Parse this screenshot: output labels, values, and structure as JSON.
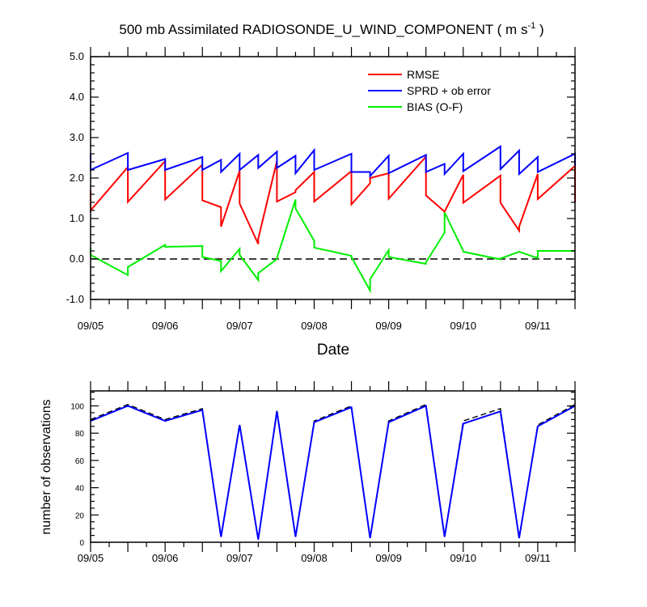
{
  "colors": {
    "rmse": "#ff0000",
    "spread": "#0000ff",
    "bias": "#00ee00",
    "obs_assim": "#0000ff",
    "obs_total": "#000000",
    "axis": "#000000"
  },
  "chart_data": [
    {
      "type": "line",
      "title_main": "500 mb Assimilated RADIOSONDE_U_WIND_COMPONENT ( m s",
      "title_sup": "-1",
      "title_end": " )",
      "xlabel": "Date",
      "ylabel": "",
      "xlim": [
        0,
        6.5
      ],
      "ylim": [
        -1.0,
        5.0
      ],
      "yticks": [
        -1.0,
        0.0,
        1.0,
        2.0,
        3.0,
        4.0,
        5.0
      ],
      "ytick_labels": [
        "-1.0",
        "0.0",
        "1.0",
        "2.0",
        "3.0",
        "4.0",
        "5.0"
      ],
      "xticks": [
        0,
        1,
        2,
        3,
        4,
        5,
        6
      ],
      "xtick_labels": [
        "09/05",
        "09/06",
        "09/07",
        "09/08",
        "09/09",
        "09/10",
        "09/11"
      ],
      "zero_line": "dashed",
      "legend_position": "top-right",
      "series": [
        {
          "name": "RMSE",
          "color_key": "rmse",
          "x": [
            0,
            0,
            0.5,
            0.5,
            1,
            1,
            1.5,
            1.5,
            1.75,
            1.75,
            2,
            2,
            2.25,
            2.25,
            2.5,
            2.5,
            2.75,
            2.75,
            3,
            3,
            3.5,
            3.5,
            3.75,
            3.75,
            4,
            4,
            4.5,
            4.5,
            4.75,
            4.75,
            5,
            5,
            5.5,
            5.5,
            5.75,
            5.75,
            6,
            6,
            6.5,
            6.5
          ],
          "y": [
            1.7,
            1.2,
            2.27,
            1.41,
            2.42,
            1.47,
            2.33,
            1.45,
            1.28,
            0.8,
            2.18,
            1.37,
            0.37,
            0.5,
            2.42,
            1.42,
            1.65,
            1.7,
            2.15,
            1.42,
            2.17,
            1.35,
            1.87,
            2.0,
            2.12,
            1.49,
            2.53,
            1.57,
            1.17,
            1.17,
            2.08,
            1.39,
            2.06,
            1.39,
            0.7,
            0.8,
            2.1,
            1.48,
            2.3,
            1.4
          ]
        },
        {
          "name": "SPRD + ob error",
          "color_key": "spread",
          "x": [
            0,
            0,
            0.5,
            0.5,
            1,
            1,
            1.5,
            1.5,
            1.75,
            1.75,
            2,
            2,
            2.25,
            2.25,
            2.5,
            2.5,
            2.75,
            2.75,
            3,
            3,
            3.5,
            3.5,
            3.75,
            3.75,
            4,
            4,
            4.5,
            4.5,
            4.75,
            4.75,
            5,
            5,
            5.5,
            5.5,
            5.75,
            5.75,
            6,
            6,
            6.5,
            6.5
          ],
          "y": [
            2.6,
            2.2,
            2.62,
            2.2,
            2.47,
            2.2,
            2.52,
            2.2,
            2.45,
            2.15,
            2.6,
            2.2,
            2.57,
            2.25,
            2.65,
            2.25,
            2.55,
            2.12,
            2.69,
            2.2,
            2.6,
            2.15,
            2.15,
            2.05,
            2.55,
            2.12,
            2.57,
            2.15,
            2.35,
            2.1,
            2.6,
            2.17,
            2.78,
            2.22,
            2.68,
            2.1,
            2.52,
            2.15,
            2.6,
            2.3
          ]
        },
        {
          "name": "BIAS (O-F)",
          "color_key": "bias",
          "x": [
            0,
            0,
            0.5,
            0.5,
            1,
            1,
            1.5,
            1.5,
            1.75,
            1.75,
            2,
            2,
            2.25,
            2.25,
            2.5,
            2.5,
            2.75,
            2.75,
            3,
            3,
            3.5,
            3.5,
            3.75,
            3.75,
            4,
            4,
            4.5,
            4.5,
            4.75,
            4.75,
            5,
            5,
            5.5,
            5.5,
            5.75,
            5.75,
            6,
            6,
            6.5,
            6.5
          ],
          "y": [
            0.28,
            0.1,
            -0.4,
            -0.2,
            0.35,
            0.3,
            0.32,
            0.05,
            -0.05,
            -0.3,
            0.25,
            0.1,
            -0.52,
            -0.35,
            0.0,
            0.02,
            1.47,
            1.25,
            0.45,
            0.28,
            0.08,
            0.05,
            -0.78,
            -0.5,
            0.22,
            0.05,
            -0.12,
            -0.08,
            0.65,
            1.15,
            0.2,
            0.18,
            -0.01,
            0.01,
            0.18,
            0.18,
            0.02,
            0.2,
            0.2,
            0.2
          ]
        }
      ]
    },
    {
      "type": "line",
      "title": "",
      "xlabel": "",
      "ylabel": "number of observations",
      "xlim": [
        0,
        6.5
      ],
      "ylim": [
        0,
        111
      ],
      "yticks": [
        0,
        20,
        40,
        60,
        80,
        100
      ],
      "ytick_labels": [
        "0",
        "20",
        "40",
        "60",
        "80",
        "100"
      ],
      "xticks": [
        0,
        1,
        2,
        3,
        4,
        5,
        6
      ],
      "xtick_labels": [
        "09/05",
        "09/06",
        "09/07",
        "09/08",
        "09/09",
        "09/10",
        "09/11"
      ],
      "series": [
        {
          "color_key": "obs_total",
          "dash": true,
          "x": [
            0,
            0.5,
            1,
            1.5,
            1.75,
            2,
            2.25,
            2.5,
            2.75,
            3,
            3.5,
            3.75,
            4,
            4.5,
            4.75,
            5,
            5.5,
            5.75,
            6,
            6.5
          ],
          "y": [
            90,
            101,
            90,
            98,
            4,
            87,
            2,
            97,
            4,
            89,
            100,
            3,
            89,
            101,
            4,
            89,
            98,
            3,
            86,
            101
          ]
        },
        {
          "color_key": "obs_assim",
          "dash": false,
          "x": [
            0,
            0.5,
            1,
            1.5,
            1.75,
            2,
            2.25,
            2.5,
            2.75,
            3,
            3.5,
            3.75,
            4,
            4.5,
            4.75,
            5,
            5.5,
            5.75,
            6,
            6.5
          ],
          "y": [
            89,
            100,
            89,
            97,
            4,
            86,
            2,
            96,
            4,
            88,
            99,
            3,
            88,
            100,
            4,
            87,
            96,
            3,
            85,
            100
          ]
        }
      ]
    }
  ]
}
